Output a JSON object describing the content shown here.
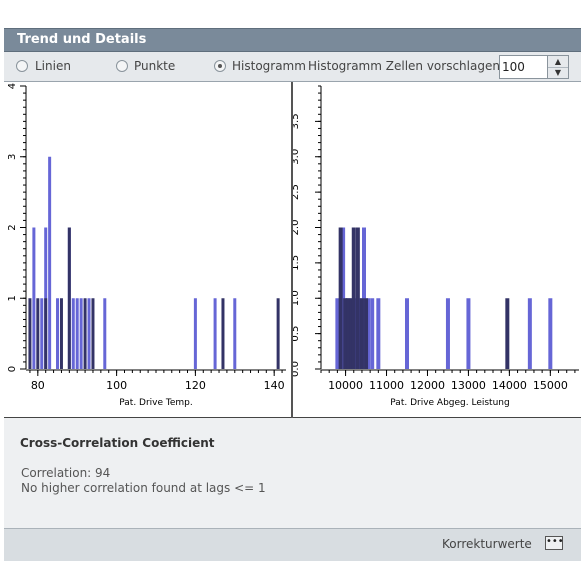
{
  "window": {
    "title": "Trend und Details"
  },
  "controls": {
    "options": [
      {
        "label": "Linien",
        "selected": false
      },
      {
        "label": "Punkte",
        "selected": false
      },
      {
        "label": "Histogramm",
        "selected": true
      }
    ],
    "bins_label": "Histogramm Zellen vorschlagen:",
    "bins_value": "100"
  },
  "colors": {
    "bar_light": "#6666d6",
    "bar_dark": "#333366",
    "accent": "#7a8a9a"
  },
  "chart_data": [
    {
      "type": "bar",
      "xlabel": "Pat. Drive Temp.",
      "ylabel": "",
      "xlim": [
        77,
        143
      ],
      "ylim": [
        0,
        4
      ],
      "xticks": [
        "80",
        "100",
        "120",
        "140"
      ],
      "yticks": [
        "0",
        "1",
        "2",
        "3",
        "4"
      ],
      "series": [
        {
          "values": [
            [
              79,
              2
            ],
            [
              81,
              1
            ],
            [
              82,
              2
            ],
            [
              83,
              3
            ],
            [
              85,
              1
            ],
            [
              88,
              2
            ],
            [
              89,
              1
            ],
            [
              90,
              1
            ],
            [
              91,
              1
            ],
            [
              93,
              1
            ],
            [
              97,
              1
            ],
            [
              120,
              1
            ],
            [
              125,
              1
            ],
            [
              130,
              1
            ]
          ]
        },
        {
          "values": [
            [
              78,
              1
            ],
            [
              80,
              1
            ],
            [
              82,
              1
            ],
            [
              86,
              1
            ],
            [
              88,
              2
            ],
            [
              92,
              1
            ],
            [
              94,
              1
            ],
            [
              127,
              1
            ],
            [
              141,
              1
            ]
          ]
        }
      ]
    },
    {
      "type": "bar",
      "xlabel": "Pat. Drive Abgeg. Leistung",
      "ylabel": "",
      "xlim": [
        9400,
        15700
      ],
      "ylim": [
        0,
        4
      ],
      "xticks": [
        "10000",
        "11000",
        "12000",
        "13000",
        "14000",
        "15000"
      ],
      "yticks": [
        "0.0",
        "0.5",
        "1.0",
        "1.5",
        "2.0",
        "2.5",
        "3.0",
        "3.5"
      ],
      "series": [
        {
          "values": [
            [
              9800,
              1
            ],
            [
              9940,
              2
            ],
            [
              10020,
              1
            ],
            [
              10100,
              1
            ],
            [
              10250,
              1
            ],
            [
              10350,
              1
            ],
            [
              10450,
              2
            ],
            [
              10550,
              1
            ],
            [
              10650,
              1
            ],
            [
              10800,
              1
            ],
            [
              11500,
              1
            ],
            [
              12500,
              1
            ],
            [
              13000,
              1
            ],
            [
              14500,
              1
            ],
            [
              15000,
              1
            ]
          ]
        },
        {
          "values": [
            [
              9880,
              2
            ],
            [
              9990,
              1
            ],
            [
              10060,
              1
            ],
            [
              10150,
              1
            ],
            [
              10200,
              2
            ],
            [
              10300,
              2
            ],
            [
              10400,
              1
            ],
            [
              10500,
              1
            ],
            [
              13950,
              1
            ]
          ]
        }
      ]
    }
  ],
  "panel": {
    "title": "Cross-Correlation Coefficient",
    "line1": "Correlation: 94",
    "line2": "No higher correlation found at lags <= 1"
  },
  "footer": {
    "link": "Korrekturwerte",
    "more": "•••"
  }
}
